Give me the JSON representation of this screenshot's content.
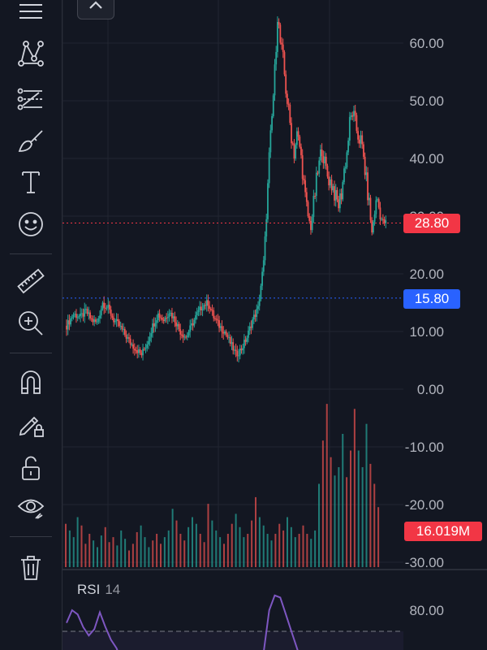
{
  "toolbar": {
    "tools": [
      {
        "name": "lines-menu-icon"
      },
      {
        "name": "pattern-tool-icon"
      },
      {
        "name": "fib-retracement-icon"
      },
      {
        "name": "brush-icon"
      },
      {
        "name": "text-tool-icon"
      },
      {
        "name": "emoji-icon"
      },
      {
        "name": "ruler-icon"
      },
      {
        "name": "zoom-in-icon"
      },
      {
        "name": "magnet-icon"
      },
      {
        "name": "lock-drawing-icon"
      },
      {
        "name": "unlock-icon"
      },
      {
        "name": "eye-icon"
      },
      {
        "name": "trash-icon"
      }
    ]
  },
  "close_button": {
    "icon": "chevron-up-icon"
  },
  "price_axis": {
    "ticks": [
      "60.00",
      "50.00",
      "40.00",
      "30.00",
      "20.00",
      "10.00",
      "0.00",
      "-10.00",
      "-20.00",
      "-30.00"
    ]
  },
  "badges": {
    "last_price": "28.80",
    "crosshair_price": "15.80",
    "volume": "16.019M"
  },
  "rsi": {
    "label": "RSI",
    "length": "14",
    "ticks": [
      "80.00"
    ]
  },
  "colors": {
    "up": "#26a69a",
    "down": "#ef5350",
    "background": "#131722",
    "rsi_line": "#7e57c2",
    "crosshair": "#2962ff",
    "last_price_line": "#f23645"
  },
  "chart_data": {
    "type": "candlestick",
    "y_axis_range": [
      -30,
      67
    ],
    "last_price": 28.8,
    "crosshair_price": 15.8,
    "close_path": [
      [
        0,
        11
      ],
      [
        5,
        13
      ],
      [
        10,
        12.5
      ],
      [
        14,
        13.5
      ],
      [
        18,
        12
      ],
      [
        22,
        11.5
      ],
      [
        26,
        15
      ],
      [
        30,
        14
      ],
      [
        34,
        12
      ],
      [
        38,
        11
      ],
      [
        42,
        9.5
      ],
      [
        46,
        8
      ],
      [
        50,
        7
      ],
      [
        54,
        6
      ],
      [
        58,
        8
      ],
      [
        62,
        11
      ],
      [
        66,
        13
      ],
      [
        70,
        12
      ],
      [
        74,
        13.5
      ],
      [
        78,
        12
      ],
      [
        82,
        10
      ],
      [
        86,
        9
      ],
      [
        90,
        11
      ],
      [
        94,
        13
      ],
      [
        98,
        14.5
      ],
      [
        102,
        15
      ],
      [
        106,
        12.5
      ],
      [
        110,
        11
      ],
      [
        114,
        10
      ],
      [
        118,
        8
      ],
      [
        122,
        6
      ],
      [
        126,
        7
      ],
      [
        130,
        9
      ],
      [
        134,
        12
      ],
      [
        138,
        14
      ],
      [
        142,
        22
      ],
      [
        144,
        30
      ],
      [
        146,
        40
      ],
      [
        148,
        47
      ],
      [
        150,
        55
      ],
      [
        152,
        65
      ],
      [
        154,
        60
      ],
      [
        156,
        57
      ],
      [
        158,
        52
      ],
      [
        160,
        48
      ],
      [
        162,
        44
      ],
      [
        164,
        41
      ],
      [
        166,
        44
      ],
      [
        168,
        42
      ],
      [
        170,
        38
      ],
      [
        172,
        33
      ],
      [
        174,
        30
      ],
      [
        176,
        28
      ],
      [
        178,
        32
      ],
      [
        180,
        36
      ],
      [
        182,
        39
      ],
      [
        184,
        42
      ],
      [
        186,
        39
      ],
      [
        188,
        37
      ],
      [
        190,
        36
      ],
      [
        192,
        35
      ],
      [
        194,
        33
      ],
      [
        196,
        32
      ],
      [
        198,
        34
      ],
      [
        200,
        38
      ],
      [
        202,
        41
      ],
      [
        204,
        46
      ],
      [
        206,
        48
      ],
      [
        208,
        46
      ],
      [
        210,
        44
      ],
      [
        212,
        43
      ],
      [
        214,
        40
      ],
      [
        216,
        36
      ],
      [
        218,
        32
      ],
      [
        220,
        27
      ],
      [
        222,
        31
      ],
      [
        224,
        33
      ],
      [
        226,
        30
      ],
      [
        228,
        29
      ],
      [
        230,
        28.8
      ]
    ],
    "volume_levels": [
      0.26,
      0.22,
      0.18,
      0.3,
      0.25,
      0.14,
      0.2,
      0.16,
      0.12,
      0.19,
      0.24,
      0.15,
      0.18,
      0.13,
      0.22,
      0.17,
      0.1,
      0.14,
      0.21,
      0.25,
      0.18,
      0.12,
      0.16,
      0.2,
      0.14,
      0.18,
      0.22,
      0.35,
      0.28,
      0.2,
      0.16,
      0.24,
      0.3,
      0.26,
      0.2,
      0.15,
      0.38,
      0.28,
      0.22,
      0.18,
      0.14,
      0.2,
      0.26,
      0.32,
      0.24,
      0.18,
      0.2,
      0.28,
      0.42,
      0.3,
      0.25,
      0.2,
      0.16,
      0.2,
      0.26,
      0.22,
      0.3,
      0.24,
      0.18,
      0.2,
      0.25,
      0.2,
      0.17,
      0.22,
      0.5,
      0.76,
      0.98,
      0.66,
      0.55,
      0.6,
      0.8,
      0.54,
      0.7,
      0.95,
      0.7,
      0.6,
      0.86,
      0.62,
      0.5,
      0.36
    ],
    "rsi_range": [
      20,
      90
    ],
    "rsi_level": 70,
    "rsi_values": [
      [
        0,
        74
      ],
      [
        4,
        80
      ],
      [
        8,
        78
      ],
      [
        12,
        72
      ],
      [
        16,
        68
      ],
      [
        20,
        71
      ],
      [
        24,
        79
      ],
      [
        28,
        72
      ],
      [
        32,
        66
      ],
      [
        36,
        62
      ],
      [
        40,
        55
      ],
      [
        142,
        60
      ],
      [
        146,
        80
      ],
      [
        150,
        87
      ],
      [
        154,
        86
      ],
      [
        158,
        78
      ],
      [
        162,
        70
      ],
      [
        166,
        62
      ],
      [
        170,
        54
      ]
    ]
  }
}
